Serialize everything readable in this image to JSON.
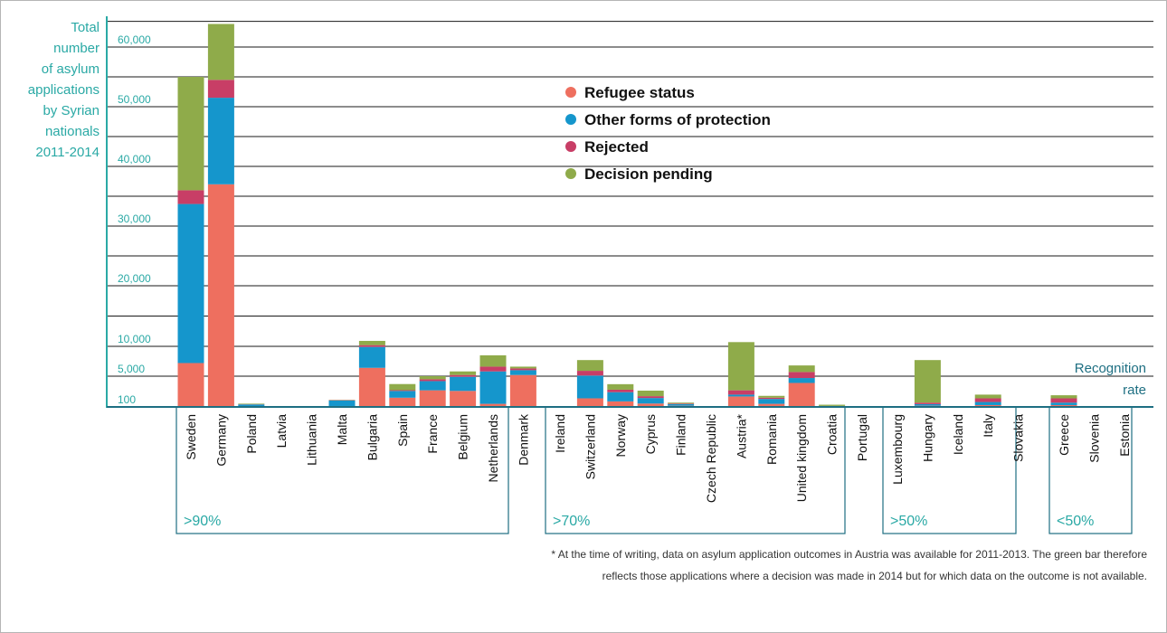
{
  "chart_data": {
    "type": "bar",
    "stacked": true,
    "ylabel": [
      "Total",
      "number",
      "of asylum",
      "applications",
      "by Syrian",
      "nationals",
      "2011-2014"
    ],
    "ytick_labels": [
      {
        "label": "100",
        "value": 0
      },
      {
        "label": "5,000",
        "value": 5000
      },
      {
        "label": "10,000",
        "value": 10000
      },
      {
        "label": "20,000",
        "value": 20000
      },
      {
        "label": "30,000",
        "value": 30000
      },
      {
        "label": "40,000",
        "value": 40000
      },
      {
        "label": "50,000",
        "value": 50000
      },
      {
        "label": "60,000",
        "value": 60000
      }
    ],
    "recognition_rate_label": [
      "Recognition",
      "rate"
    ],
    "legend": {
      "placement": "top-center",
      "entries": [
        {
          "key": "refugee",
          "label": "Refugee status",
          "color": "#ee6f5f"
        },
        {
          "key": "other",
          "label": "Other forms of protection",
          "color": "#1596cc"
        },
        {
          "key": "rejected",
          "label": "Rejected",
          "color": "#c83e66"
        },
        {
          "key": "pending",
          "label": "Decision pending",
          "color": "#8fab4a"
        }
      ]
    },
    "groups": [
      {
        "label": ">90%",
        "countries": [
          "Sweden",
          "Germany",
          "Poland",
          "Latvia",
          "Lithuania",
          "Malta",
          "Bulgaria",
          "Spain",
          "France",
          "Belgium",
          "Netherlands",
          "Denmark"
        ]
      },
      {
        "label": ">70%",
        "countries": [
          "Ireland",
          "Switzerland",
          "Norway",
          "Cyprus",
          "Finland",
          "Czech Republic",
          "Austria*",
          "Romania",
          "United kingdom",
          "Croatia",
          "Portugal"
        ]
      },
      {
        "label": ">50%",
        "countries": [
          "Luxembourg",
          "Hungary",
          "Iceland",
          "Italy",
          "Slovakia"
        ]
      },
      {
        "label": "<50%",
        "countries": [
          "Greece",
          "Slovenia",
          "Estonia"
        ]
      }
    ],
    "series": [
      {
        "name": "Refugee status",
        "values": [
          7200,
          37000,
          100,
          30,
          40,
          150,
          6400,
          1500,
          2700,
          2600,
          500,
          5200,
          20,
          1400,
          900,
          550,
          200,
          40,
          1700,
          500,
          3900,
          50,
          30,
          30,
          200,
          30,
          300,
          30,
          300,
          30,
          30
        ]
      },
      {
        "name": "Other forms of protection",
        "values": [
          26500,
          14500,
          300,
          60,
          60,
          900,
          3500,
          1100,
          1500,
          2300,
          5300,
          800,
          50,
          3700,
          1500,
          900,
          250,
          50,
          300,
          800,
          800,
          80,
          40,
          40,
          250,
          30,
          500,
          30,
          400,
          60,
          40
        ]
      },
      {
        "name": "Rejected",
        "values": [
          2300,
          3000,
          30,
          20,
          20,
          50,
          300,
          120,
          300,
          300,
          800,
          300,
          20,
          800,
          400,
          300,
          100,
          20,
          700,
          200,
          1000,
          30,
          20,
          30,
          250,
          20,
          600,
          30,
          700,
          30,
          20
        ]
      },
      {
        "name": "Decision pending",
        "values": [
          19000,
          10000,
          100,
          40,
          30,
          50,
          700,
          1000,
          500,
          600,
          1900,
          300,
          40,
          1800,
          900,
          900,
          150,
          30,
          8000,
          300,
          1100,
          200,
          30,
          30,
          7000,
          20,
          600,
          30,
          500,
          30,
          20
        ]
      }
    ],
    "footnote": [
      "* At the time of writing, data on asylum application outcomes in Austria was available for 2011-2013. The green bar therefore",
      "reflects those applications where a decision was made in 2014 but for which data on the outcome is not available."
    ]
  }
}
